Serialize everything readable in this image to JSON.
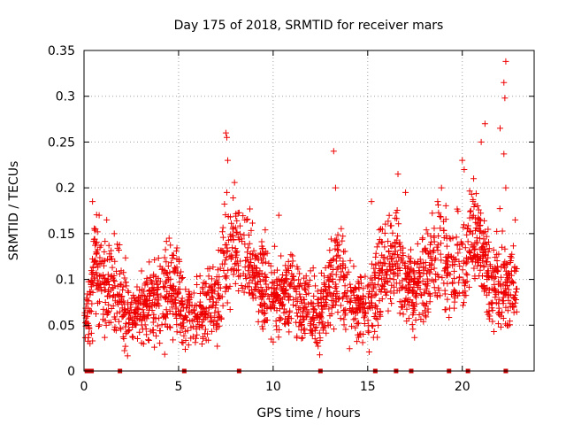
{
  "chart_data": {
    "type": "scatter",
    "title": "Day 175 of 2018, SRMTID for receiver mars",
    "xlabel": "GPS time / hours",
    "ylabel": "SRMTID / TECUs",
    "xlim": [
      0,
      23.8
    ],
    "ylim": [
      0,
      0.35
    ],
    "x_ticks": [
      0,
      5,
      10,
      15,
      20
    ],
    "x_tick_labels": [
      "0",
      "5",
      "10",
      "15",
      "20"
    ],
    "y_ticks": [
      0,
      0.05,
      0.1,
      0.15,
      0.2,
      0.25,
      0.3,
      0.35
    ],
    "y_tick_labels": [
      "0",
      "0.05",
      "0.1",
      "0.15",
      "0.2",
      "0.25",
      "0.3",
      "0.35"
    ],
    "grid": true,
    "marker": "plus",
    "series": [
      {
        "name": "SRMTID",
        "color": "#ee0000",
        "profile": [
          [
            0.0,
            0.05,
            0.015
          ],
          [
            0.3,
            0.07,
            0.02
          ],
          [
            0.6,
            0.13,
            0.035
          ],
          [
            1.0,
            0.09,
            0.03
          ],
          [
            1.5,
            0.1,
            0.03
          ],
          [
            2.0,
            0.07,
            0.025
          ],
          [
            2.5,
            0.06,
            0.02
          ],
          [
            3.0,
            0.065,
            0.02
          ],
          [
            3.5,
            0.075,
            0.025
          ],
          [
            4.0,
            0.08,
            0.025
          ],
          [
            4.5,
            0.09,
            0.03
          ],
          [
            5.0,
            0.08,
            0.025
          ],
          [
            5.5,
            0.065,
            0.02
          ],
          [
            6.0,
            0.06,
            0.02
          ],
          [
            6.5,
            0.07,
            0.02
          ],
          [
            7.0,
            0.08,
            0.025
          ],
          [
            7.5,
            0.12,
            0.03
          ],
          [
            8.0,
            0.14,
            0.03
          ],
          [
            8.5,
            0.12,
            0.025
          ],
          [
            9.0,
            0.11,
            0.025
          ],
          [
            9.5,
            0.095,
            0.025
          ],
          [
            10.0,
            0.085,
            0.025
          ],
          [
            10.5,
            0.08,
            0.02
          ],
          [
            11.0,
            0.09,
            0.025
          ],
          [
            11.5,
            0.07,
            0.02
          ],
          [
            12.0,
            0.065,
            0.02
          ],
          [
            12.5,
            0.06,
            0.02
          ],
          [
            13.0,
            0.09,
            0.025
          ],
          [
            13.5,
            0.11,
            0.03
          ],
          [
            14.0,
            0.08,
            0.02
          ],
          [
            14.5,
            0.07,
            0.02
          ],
          [
            15.0,
            0.07,
            0.02
          ],
          [
            15.5,
            0.1,
            0.03
          ],
          [
            16.0,
            0.11,
            0.03
          ],
          [
            16.5,
            0.12,
            0.03
          ],
          [
            17.0,
            0.1,
            0.025
          ],
          [
            17.5,
            0.09,
            0.025
          ],
          [
            18.0,
            0.11,
            0.03
          ],
          [
            18.5,
            0.12,
            0.03
          ],
          [
            19.0,
            0.13,
            0.03
          ],
          [
            19.5,
            0.1,
            0.025
          ],
          [
            20.0,
            0.12,
            0.03
          ],
          [
            20.5,
            0.15,
            0.03
          ],
          [
            21.0,
            0.14,
            0.03
          ],
          [
            21.5,
            0.09,
            0.025
          ],
          [
            22.0,
            0.1,
            0.03
          ],
          [
            22.5,
            0.09,
            0.025
          ],
          [
            22.9,
            0.09,
            0.02
          ]
        ],
        "n_points": 2200,
        "outliers": [
          [
            0.45,
            0.185
          ],
          [
            0.8,
            0.17
          ],
          [
            1.2,
            0.165
          ],
          [
            1.6,
            0.15
          ],
          [
            4.5,
            0.145
          ],
          [
            7.5,
            0.26
          ],
          [
            7.55,
            0.255
          ],
          [
            7.6,
            0.23
          ],
          [
            7.55,
            0.195
          ],
          [
            8.6,
            0.165
          ],
          [
            10.3,
            0.17
          ],
          [
            13.2,
            0.24
          ],
          [
            13.3,
            0.2
          ],
          [
            15.2,
            0.185
          ],
          [
            16.6,
            0.215
          ],
          [
            17.0,
            0.195
          ],
          [
            18.7,
            0.185
          ],
          [
            18.9,
            0.2
          ],
          [
            20.0,
            0.23
          ],
          [
            20.1,
            0.22
          ],
          [
            20.6,
            0.21
          ],
          [
            21.0,
            0.25
          ],
          [
            21.2,
            0.27
          ],
          [
            22.0,
            0.265
          ],
          [
            22.2,
            0.315
          ],
          [
            22.25,
            0.298
          ],
          [
            22.3,
            0.338
          ],
          [
            22.2,
            0.237
          ],
          [
            22.3,
            0.2
          ],
          [
            22.8,
            0.165
          ]
        ],
        "gaps": [
          0.15,
          0.25,
          0.4,
          1.9,
          5.3,
          8.2,
          12.5,
          15.4,
          16.5,
          17.3,
          19.3,
          20.3,
          22.3
        ]
      }
    ]
  }
}
